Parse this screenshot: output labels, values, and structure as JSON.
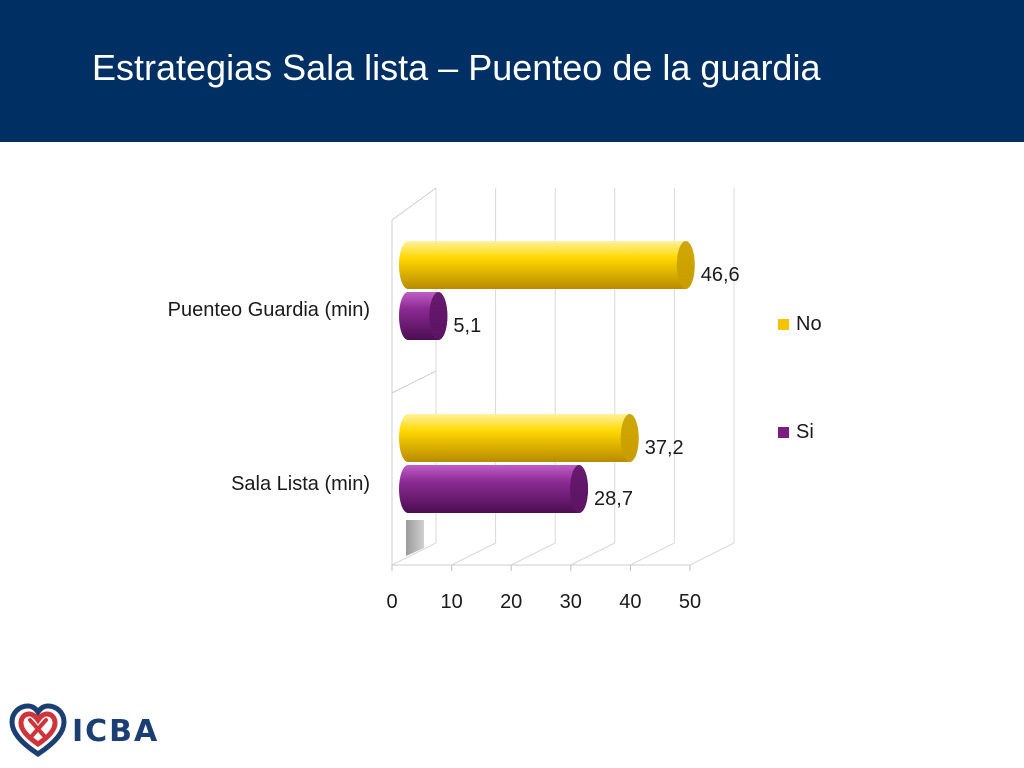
{
  "slide": {
    "title": "Estrategias Sala lista – Puenteo de la guardia"
  },
  "chart_data": {
    "type": "bar",
    "orientation": "horizontal",
    "style": "3d-cylinder",
    "categories": [
      "Puenteo Guardia (min)",
      "Sala Lista (min)"
    ],
    "series": [
      {
        "name": "No",
        "color": "#f5c400",
        "values": [
          46.6,
          37.2
        ],
        "labels": [
          "46,6",
          "37,2"
        ]
      },
      {
        "name": "Si",
        "color": "#7a1e80",
        "values": [
          5.1,
          28.7
        ],
        "labels": [
          "5,1",
          "28,7"
        ]
      }
    ],
    "xlim": [
      0,
      50
    ],
    "xticks": [
      "0",
      "10",
      "20",
      "30",
      "40",
      "50"
    ],
    "grid": true,
    "legend": "right"
  },
  "logo": {
    "text": "ICBA",
    "colors": {
      "blue": "#1c3f73",
      "red": "#d0343a"
    }
  }
}
